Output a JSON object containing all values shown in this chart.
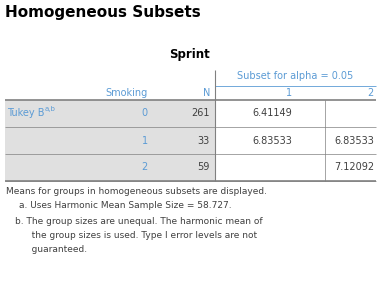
{
  "title": "Homogeneous Subsets",
  "subtitle": "Sprint",
  "subset_header": "Subset for alpha = 0.05",
  "col_headers": [
    "Smoking",
    "N",
    "1",
    "2"
  ],
  "row_label": "Tukey B",
  "row_label_super": "a,b",
  "rows": [
    {
      "smoking": "0",
      "N": "261",
      "s1": "6.41149",
      "s2": ""
    },
    {
      "smoking": "1",
      "N": "33",
      "s1": "6.83533",
      "s2": "6.83533"
    },
    {
      "smoking": "2",
      "N": "59",
      "s1": "",
      "s2": "7.12092"
    }
  ],
  "footnote_main": "Means for groups in homogeneous subsets are displayed.",
  "footnote_a": "a. Uses Harmonic Mean Sample Size = 58.727.",
  "footnote_b1": "b. The group sizes are unequal. The harmonic mean of",
  "footnote_b2": "   the group sizes is used. Type I error levels are not",
  "footnote_b3": "   guaranteed.",
  "bg_color": "#ffffff",
  "header_text_color": "#5B9BD5",
  "row_label_color": "#5B9BD5",
  "title_color": "#000000",
  "table_bg_gray": "#E0E0E0",
  "table_bg_white": "#ffffff",
  "border_color": "#808080",
  "footnote_color": "#404040",
  "title_fontsize": 11,
  "subtitle_fontsize": 8.5,
  "header_fontsize": 7,
  "cell_fontsize": 7,
  "footnote_fontsize": 6.5
}
